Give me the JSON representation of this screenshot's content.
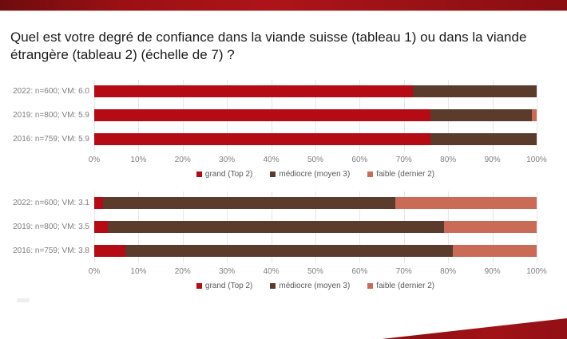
{
  "slide": {
    "title": "Quel est votre degré de confiance dans la viande suisse (tableau 1) ou dans la viande étrangère (tableau 2) (échelle de 7) ?"
  },
  "colors": {
    "accent_red": "#B40B15",
    "brown": "#5A3B2C",
    "salmon": "#C96B57",
    "top_bar_red": "#9C1014",
    "gridline": "#E7E7E7",
    "label_gray": "#7F7F7F"
  },
  "legend": [
    {
      "label": "grand (Top 2)",
      "color": "#B40B15"
    },
    {
      "label": "médiocre (moyen 3)",
      "color": "#5A3B2C"
    },
    {
      "label": "faible (dernier 2)",
      "color": "#C96B57"
    }
  ],
  "axis_ticks": [
    "0%",
    "10%",
    "20%",
    "30%",
    "40%",
    "50%",
    "60%",
    "70%",
    "80%",
    "90%",
    "100%"
  ],
  "chart_data": [
    {
      "type": "bar",
      "orientation": "horizontal",
      "stacked": true,
      "title": "Confiance dans la viande suisse (tableau 1)",
      "categories": [
        "2022: n=600; VM: 6.0",
        "2019: n=800; VM: 5.9",
        "2016: n=759; VM: 5.9"
      ],
      "series": [
        {
          "name": "grand (Top 2)",
          "values": [
            72,
            76,
            76
          ]
        },
        {
          "name": "médiocre (moyen 3)",
          "values": [
            28,
            23,
            24
          ]
        },
        {
          "name": "faible (dernier 2)",
          "values": [
            0,
            1,
            0
          ]
        }
      ],
      "xlim": [
        0,
        100
      ],
      "x_tick_labels": [
        "0%",
        "10%",
        "20%",
        "30%",
        "40%",
        "50%",
        "60%",
        "70%",
        "80%",
        "90%",
        "100%"
      ],
      "grid": true,
      "legend_position": "bottom"
    },
    {
      "type": "bar",
      "orientation": "horizontal",
      "stacked": true,
      "title": "Confiance dans la viande étrangère (tableau 2)",
      "categories": [
        "2022: n=600; VM: 3.1",
        "2019: n=800; VM: 3.5",
        "2016: n=759; VM: 3.8"
      ],
      "series": [
        {
          "name": "grand (Top 2)",
          "values": [
            2,
            3,
            7
          ]
        },
        {
          "name": "médiocre (moyen 3)",
          "values": [
            66,
            76,
            74
          ]
        },
        {
          "name": "faible (dernier 2)",
          "values": [
            32,
            21,
            19
          ]
        }
      ],
      "xlim": [
        0,
        100
      ],
      "x_tick_labels": [
        "0%",
        "10%",
        "20%",
        "30%",
        "40%",
        "50%",
        "60%",
        "70%",
        "80%",
        "90%",
        "100%"
      ],
      "grid": true,
      "legend_position": "bottom"
    }
  ]
}
